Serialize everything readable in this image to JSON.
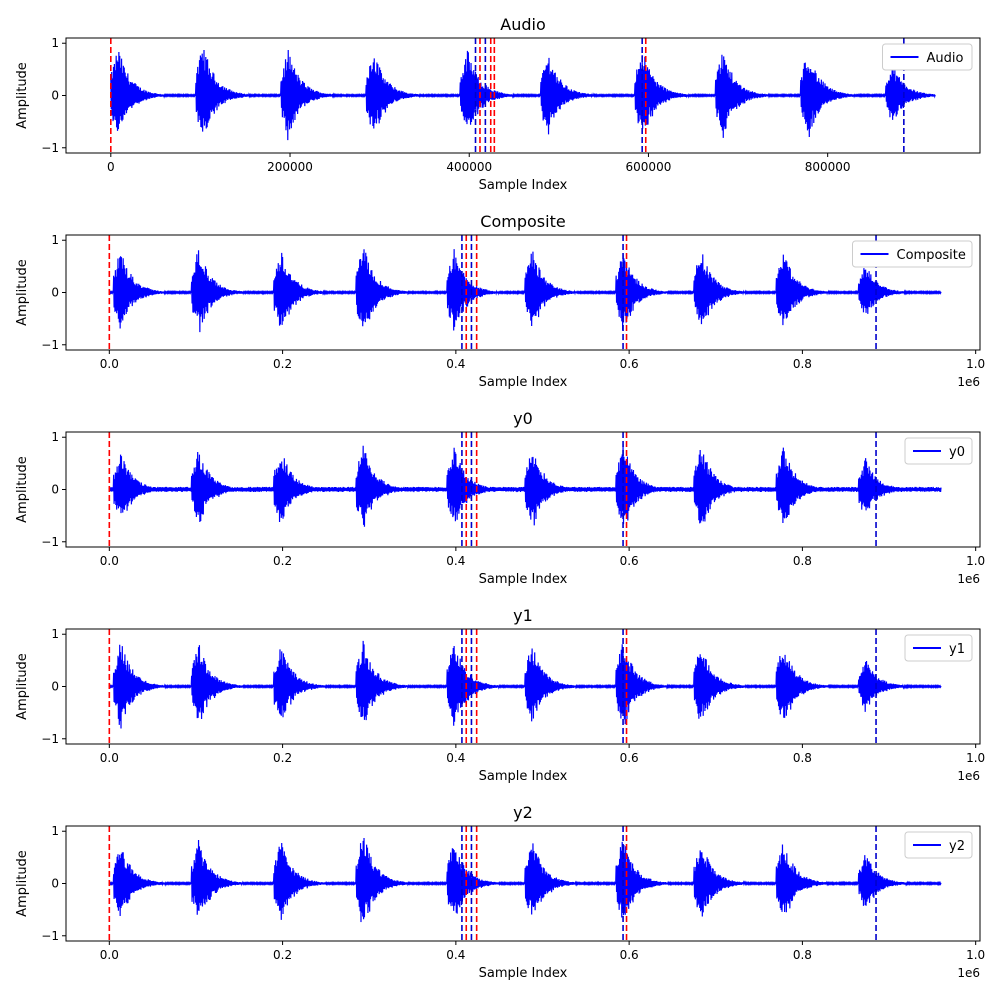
{
  "chart_data": [
    {
      "type": "line",
      "title": "Audio",
      "xlabel": "Sample Index",
      "ylabel": "Amplitude",
      "xlim": [
        -50000,
        970000
      ],
      "ylim": [
        -1.1,
        1.1
      ],
      "xticks": [
        0,
        200000,
        400000,
        600000,
        800000
      ],
      "xtick_labels": [
        "0",
        "200000",
        "400000",
        "600000",
        "800000"
      ],
      "xscale_label": "",
      "yticks": [
        -1,
        0,
        1
      ],
      "ytick_labels": [
        "−1",
        "0",
        "1"
      ],
      "legend": {
        "label": "Audio",
        "placement": "upper right"
      },
      "series": [
        {
          "name": "Audio",
          "color": "#0000ff",
          "x_extent": [
            0,
            920000
          ],
          "bursts": [
            {
              "x": 0,
              "amp": 0.95
            },
            {
              "x": 95000,
              "amp": 1.0
            },
            {
              "x": 190000,
              "amp": 0.9
            },
            {
              "x": 285000,
              "amp": 0.9
            },
            {
              "x": 390000,
              "amp": 0.9
            },
            {
              "x": 480000,
              "amp": 0.85
            },
            {
              "x": 585000,
              "amp": 0.95
            },
            {
              "x": 675000,
              "amp": 0.9
            },
            {
              "x": 770000,
              "amp": 0.9
            },
            {
              "x": 865000,
              "amp": 0.6
            }
          ]
        }
      ],
      "vlines": [
        {
          "x": 0,
          "color": "#ff0000"
        },
        {
          "x": 412000,
          "color": "#ff0000"
        },
        {
          "x": 418000,
          "color": "#0000cc"
        },
        {
          "x": 424000,
          "color": "#ff0000"
        },
        {
          "x": 428000,
          "color": "#ff0000"
        },
        {
          "x": 407000,
          "color": "#0000cc"
        },
        {
          "x": 593000,
          "color": "#0000cc"
        },
        {
          "x": 597000,
          "color": "#ff0000"
        },
        {
          "x": 885000,
          "color": "#0000cc"
        }
      ]
    },
    {
      "type": "line",
      "title": "Composite",
      "xlabel": "Sample Index",
      "ylabel": "Amplitude",
      "xlim": [
        -50000,
        1005000
      ],
      "ylim": [
        -1.1,
        1.1
      ],
      "xticks": [
        0,
        200000,
        400000,
        600000,
        800000,
        1000000
      ],
      "xtick_labels": [
        "0.0",
        "0.2",
        "0.4",
        "0.6",
        "0.8",
        "1.0"
      ],
      "xscale_label": "1e6",
      "yticks": [
        -1,
        0,
        1
      ],
      "ytick_labels": [
        "−1",
        "0",
        "1"
      ],
      "legend": {
        "label": "Composite",
        "placement": "upper right"
      },
      "series": [
        {
          "name": "Composite",
          "color": "#0000ff",
          "x_extent": [
            0,
            960000
          ],
          "bursts": [
            {
              "x": 5000,
              "amp": 0.85
            },
            {
              "x": 95000,
              "amp": 0.9
            },
            {
              "x": 190000,
              "amp": 0.85
            },
            {
              "x": 285000,
              "amp": 0.95
            },
            {
              "x": 390000,
              "amp": 0.85
            },
            {
              "x": 480000,
              "amp": 0.85
            },
            {
              "x": 585000,
              "amp": 0.85
            },
            {
              "x": 675000,
              "amp": 0.85
            },
            {
              "x": 770000,
              "amp": 0.85
            },
            {
              "x": 865000,
              "amp": 0.55
            }
          ]
        }
      ],
      "vlines": [
        {
          "x": 0,
          "color": "#ff0000"
        },
        {
          "x": 407000,
          "color": "#0000cc"
        },
        {
          "x": 412000,
          "color": "#ff0000"
        },
        {
          "x": 418000,
          "color": "#0000cc"
        },
        {
          "x": 424000,
          "color": "#ff0000"
        },
        {
          "x": 593000,
          "color": "#0000cc"
        },
        {
          "x": 597000,
          "color": "#ff0000"
        },
        {
          "x": 885000,
          "color": "#0000cc"
        }
      ]
    },
    {
      "type": "line",
      "title": "y0",
      "xlabel": "Sample Index",
      "ylabel": "Amplitude",
      "xlim": [
        -50000,
        1005000
      ],
      "ylim": [
        -1.1,
        1.1
      ],
      "xticks": [
        0,
        200000,
        400000,
        600000,
        800000,
        1000000
      ],
      "xtick_labels": [
        "0.0",
        "0.2",
        "0.4",
        "0.6",
        "0.8",
        "1.0"
      ],
      "xscale_label": "1e6",
      "yticks": [
        -1,
        0,
        1
      ],
      "ytick_labels": [
        "−1",
        "0",
        "1"
      ],
      "legend": {
        "label": "y0",
        "placement": "upper right"
      },
      "series": [
        {
          "name": "y0",
          "color": "#0000ff",
          "x_extent": [
            0,
            960000
          ],
          "bursts": [
            {
              "x": 5000,
              "amp": 0.75
            },
            {
              "x": 95000,
              "amp": 0.8
            },
            {
              "x": 190000,
              "amp": 0.8
            },
            {
              "x": 285000,
              "amp": 0.9
            },
            {
              "x": 390000,
              "amp": 0.85
            },
            {
              "x": 480000,
              "amp": 0.85
            },
            {
              "x": 585000,
              "amp": 0.9
            },
            {
              "x": 675000,
              "amp": 0.9
            },
            {
              "x": 770000,
              "amp": 0.85
            },
            {
              "x": 865000,
              "amp": 0.6
            }
          ]
        }
      ],
      "vlines": [
        {
          "x": 0,
          "color": "#ff0000"
        },
        {
          "x": 407000,
          "color": "#0000cc"
        },
        {
          "x": 412000,
          "color": "#ff0000"
        },
        {
          "x": 418000,
          "color": "#0000cc"
        },
        {
          "x": 424000,
          "color": "#ff0000"
        },
        {
          "x": 593000,
          "color": "#0000cc"
        },
        {
          "x": 597000,
          "color": "#ff0000"
        },
        {
          "x": 885000,
          "color": "#0000cc"
        }
      ]
    },
    {
      "type": "line",
      "title": "y1",
      "xlabel": "Sample Index",
      "ylabel": "Amplitude",
      "xlim": [
        -50000,
        1005000
      ],
      "ylim": [
        -1.1,
        1.1
      ],
      "xticks": [
        0,
        200000,
        400000,
        600000,
        800000,
        1000000
      ],
      "xtick_labels": [
        "0.0",
        "0.2",
        "0.4",
        "0.6",
        "0.8",
        "1.0"
      ],
      "xscale_label": "1e6",
      "yticks": [
        -1,
        0,
        1
      ],
      "ytick_labels": [
        "−1",
        "0",
        "1"
      ],
      "legend": {
        "label": "y1",
        "placement": "upper right"
      },
      "series": [
        {
          "name": "y1",
          "color": "#0000ff",
          "x_extent": [
            0,
            960000
          ],
          "bursts": [
            {
              "x": 5000,
              "amp": 0.9
            },
            {
              "x": 95000,
              "amp": 0.85
            },
            {
              "x": 190000,
              "amp": 0.85
            },
            {
              "x": 285000,
              "amp": 0.9
            },
            {
              "x": 390000,
              "amp": 0.9
            },
            {
              "x": 480000,
              "amp": 0.85
            },
            {
              "x": 585000,
              "amp": 0.9
            },
            {
              "x": 675000,
              "amp": 0.85
            },
            {
              "x": 770000,
              "amp": 0.85
            },
            {
              "x": 865000,
              "amp": 0.55
            }
          ]
        }
      ],
      "vlines": [
        {
          "x": 0,
          "color": "#ff0000"
        },
        {
          "x": 407000,
          "color": "#0000cc"
        },
        {
          "x": 412000,
          "color": "#ff0000"
        },
        {
          "x": 418000,
          "color": "#0000cc"
        },
        {
          "x": 424000,
          "color": "#ff0000"
        },
        {
          "x": 593000,
          "color": "#0000cc"
        },
        {
          "x": 597000,
          "color": "#ff0000"
        },
        {
          "x": 885000,
          "color": "#0000cc"
        }
      ]
    },
    {
      "type": "line",
      "title": "y2",
      "xlabel": "Sample Index",
      "ylabel": "Amplitude",
      "xlim": [
        -50000,
        1005000
      ],
      "ylim": [
        -1.1,
        1.1
      ],
      "xticks": [
        0,
        200000,
        400000,
        600000,
        800000,
        1000000
      ],
      "xtick_labels": [
        "0.0",
        "0.2",
        "0.4",
        "0.6",
        "0.8",
        "1.0"
      ],
      "xscale_label": "1e6",
      "yticks": [
        -1,
        0,
        1
      ],
      "ytick_labels": [
        "−1",
        "0",
        "1"
      ],
      "legend": {
        "label": "y2",
        "placement": "upper right"
      },
      "series": [
        {
          "name": "y2",
          "color": "#0000ff",
          "x_extent": [
            0,
            960000
          ],
          "bursts": [
            {
              "x": 5000,
              "amp": 0.8
            },
            {
              "x": 95000,
              "amp": 0.85
            },
            {
              "x": 190000,
              "amp": 0.85
            },
            {
              "x": 285000,
              "amp": 1.0
            },
            {
              "x": 390000,
              "amp": 0.85
            },
            {
              "x": 480000,
              "amp": 0.85
            },
            {
              "x": 585000,
              "amp": 0.9
            },
            {
              "x": 675000,
              "amp": 0.85
            },
            {
              "x": 770000,
              "amp": 0.85
            },
            {
              "x": 865000,
              "amp": 0.6
            }
          ]
        }
      ],
      "vlines": [
        {
          "x": 0,
          "color": "#ff0000"
        },
        {
          "x": 407000,
          "color": "#0000cc"
        },
        {
          "x": 412000,
          "color": "#ff0000"
        },
        {
          "x": 418000,
          "color": "#0000cc"
        },
        {
          "x": 424000,
          "color": "#ff0000"
        },
        {
          "x": 593000,
          "color": "#0000cc"
        },
        {
          "x": 597000,
          "color": "#ff0000"
        },
        {
          "x": 885000,
          "color": "#0000cc"
        }
      ]
    }
  ]
}
